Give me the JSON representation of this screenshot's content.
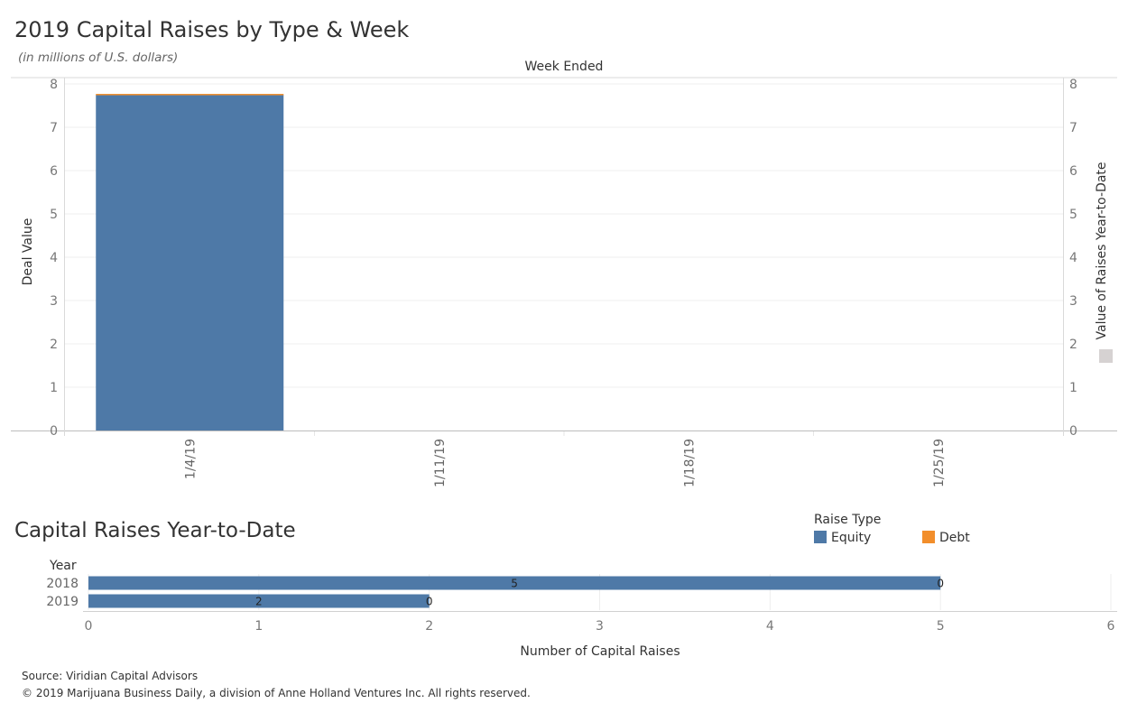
{
  "title": "2019 Capital Raises by Type & Week",
  "subtitle": "(in millions of U.S. dollars)",
  "bottom_title": "Capital Raises Year-to-Date",
  "legend": {
    "title": "Raise Type",
    "items": [
      {
        "label": "Equity",
        "color": "#4e79a7"
      },
      {
        "label": "Debt",
        "color": "#f28e2b"
      }
    ]
  },
  "footer": {
    "source": "Source: Viridian Capital Advisors",
    "copyright": "© 2019 Marijuana Business Daily, a division of Anne Holland Ventures Inc. All rights reserved."
  },
  "chart_data": [
    {
      "type": "bar",
      "stacked": true,
      "x_header": "Week Ended",
      "ylabel": "Deal Value",
      "ylabel_right": "Value of Raises Year-to-Date",
      "categories": [
        "1/4/19",
        "1/11/19",
        "1/18/19",
        "1/25/19"
      ],
      "series": [
        {
          "name": "Equity",
          "values": [
            7.75,
            0,
            0,
            0
          ],
          "color": "#4e79a7"
        },
        {
          "name": "Debt",
          "values": [
            0.02,
            0,
            0,
            0
          ],
          "color": "#f28e2b"
        }
      ],
      "ylim": [
        0,
        8
      ],
      "yticks": [
        0,
        1,
        2,
        3,
        4,
        5,
        6,
        7,
        8
      ],
      "grid": true
    },
    {
      "type": "bar",
      "orientation": "horizontal",
      "y_header": "Year",
      "xlabel": "Number of Capital Raises",
      "categories": [
        "2018",
        "2019"
      ],
      "series": [
        {
          "name": "Equity",
          "values": [
            5,
            2
          ],
          "color": "#4e79a7"
        },
        {
          "name": "Debt",
          "values": [
            0,
            0
          ],
          "color": "#f28e2b"
        }
      ],
      "xlim": [
        0,
        6
      ],
      "xticks": [
        0,
        1,
        2,
        3,
        4,
        5,
        6
      ],
      "grid": true
    }
  ]
}
